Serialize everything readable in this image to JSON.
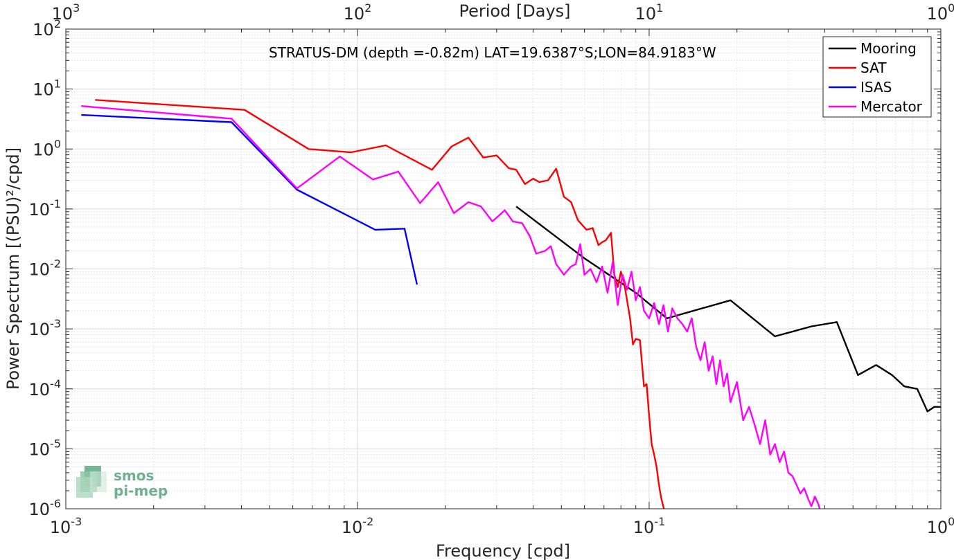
{
  "chart_data": {
    "type": "line",
    "title": "",
    "annotation": "STRATUS-DM (depth =-0.82m) LAT=19.6387°S;LON=84.9183°W",
    "xlabel": "Frequency [cpd]",
    "ylabel": "Power Spectrum [(PSU)²/cpd]",
    "top_xlabel": "Period [Days]",
    "x_scale": "log",
    "y_scale": "log",
    "xlim": [
      0.001,
      1
    ],
    "ylim": [
      1e-06,
      100
    ],
    "grid": true,
    "legend_position": "top-right",
    "x_ticks": [
      {
        "base": "10",
        "exp": "-3"
      },
      {
        "base": "10",
        "exp": "-2"
      },
      {
        "base": "10",
        "exp": "-1"
      },
      {
        "base": "10",
        "exp": "0"
      }
    ],
    "y_ticks": [
      {
        "base": "10",
        "exp": "-6"
      },
      {
        "base": "10",
        "exp": "-5"
      },
      {
        "base": "10",
        "exp": "-4"
      },
      {
        "base": "10",
        "exp": "-3"
      },
      {
        "base": "10",
        "exp": "-2"
      },
      {
        "base": "10",
        "exp": "-1"
      },
      {
        "base": "10",
        "exp": "0"
      },
      {
        "base": "10",
        "exp": "1"
      },
      {
        "base": "10",
        "exp": "2"
      }
    ],
    "top_ticks": [
      {
        "base": "10",
        "exp": "3"
      },
      {
        "base": "10",
        "exp": "2"
      },
      {
        "base": "10",
        "exp": "1"
      },
      {
        "base": "10",
        "exp": "0"
      }
    ],
    "series": [
      {
        "name": "Mooring",
        "color": "#000000",
        "points": [
          [
            0.035,
            0.11
          ],
          [
            0.06,
            0.015
          ],
          [
            0.09,
            0.004
          ],
          [
            0.115,
            0.0015
          ],
          [
            0.19,
            0.003
          ],
          [
            0.27,
            0.00075
          ],
          [
            0.36,
            0.0011
          ],
          [
            0.44,
            0.0013
          ],
          [
            0.52,
            0.00017
          ],
          [
            0.6,
            0.00025
          ],
          [
            0.68,
            0.00017
          ],
          [
            0.75,
            0.00011
          ],
          [
            0.83,
            0.0001
          ],
          [
            0.9,
            4.2e-05
          ],
          [
            0.95,
            5e-05
          ],
          [
            1.0,
            5e-05
          ]
        ]
      },
      {
        "name": "SAT",
        "color": "#ff0000",
        "points": [
          [
            0.00126,
            6.6
          ],
          [
            0.0041,
            4.5
          ],
          [
            0.0068,
            1.0
          ],
          [
            0.0095,
            0.88
          ],
          [
            0.0125,
            1.15
          ],
          [
            0.018,
            0.45
          ],
          [
            0.021,
            1.1
          ],
          [
            0.024,
            1.55
          ],
          [
            0.027,
            0.72
          ],
          [
            0.03,
            0.78
          ],
          [
            0.033,
            0.48
          ],
          [
            0.035,
            0.45
          ],
          [
            0.0375,
            0.26
          ],
          [
            0.04,
            0.32
          ],
          [
            0.042,
            0.28
          ],
          [
            0.045,
            0.3
          ],
          [
            0.048,
            0.47
          ],
          [
            0.051,
            0.16
          ],
          [
            0.054,
            0.13
          ],
          [
            0.057,
            0.065
          ],
          [
            0.061,
            0.045
          ],
          [
            0.064,
            0.048
          ],
          [
            0.067,
            0.025
          ],
          [
            0.069,
            0.028
          ],
          [
            0.071,
            0.03
          ],
          [
            0.074,
            0.04
          ],
          [
            0.076,
            0.008
          ],
          [
            0.078,
            0.005
          ],
          [
            0.08,
            0.009
          ],
          [
            0.082,
            0.006
          ],
          [
            0.084,
            0.003
          ],
          [
            0.086,
            0.0015
          ],
          [
            0.088,
            0.00055
          ],
          [
            0.09,
            0.00068
          ],
          [
            0.093,
            0.00065
          ],
          [
            0.096,
            0.00011
          ],
          [
            0.098,
            0.00012
          ],
          [
            0.1,
            3.5e-05
          ],
          [
            0.102,
            1.2e-05
          ],
          [
            0.104,
            8e-06
          ],
          [
            0.106,
            5e-06
          ],
          [
            0.108,
            2.5e-06
          ],
          [
            0.11,
            1.5e-06
          ],
          [
            0.113,
            9e-07
          ]
        ]
      },
      {
        "name": "ISAS",
        "color": "#0000ff",
        "points": [
          [
            0.00113,
            3.7
          ],
          [
            0.0037,
            2.8
          ],
          [
            0.0062,
            0.21
          ],
          [
            0.0115,
            0.045
          ],
          [
            0.0145,
            0.047
          ],
          [
            0.016,
            0.0055
          ]
        ]
      },
      {
        "name": "Mercator",
        "color": "#ff00ff",
        "points": [
          [
            0.00113,
            5.2
          ],
          [
            0.0037,
            3.2
          ],
          [
            0.0062,
            0.22
          ],
          [
            0.0087,
            0.75
          ],
          [
            0.0113,
            0.31
          ],
          [
            0.0138,
            0.42
          ],
          [
            0.0164,
            0.125
          ],
          [
            0.0189,
            0.28
          ],
          [
            0.0214,
            0.085
          ],
          [
            0.024,
            0.13
          ],
          [
            0.0265,
            0.11
          ],
          [
            0.029,
            0.062
          ],
          [
            0.032,
            0.095
          ],
          [
            0.0341,
            0.062
          ],
          [
            0.0367,
            0.058
          ],
          [
            0.039,
            0.035
          ],
          [
            0.041,
            0.018
          ],
          [
            0.044,
            0.02
          ],
          [
            0.046,
            0.024
          ],
          [
            0.048,
            0.012
          ],
          [
            0.051,
            0.008
          ],
          [
            0.054,
            0.011
          ],
          [
            0.056,
            0.012
          ],
          [
            0.058,
            0.026
          ],
          [
            0.06,
            0.008
          ],
          [
            0.063,
            0.01
          ],
          [
            0.066,
            0.006
          ],
          [
            0.069,
            0.011
          ],
          [
            0.072,
            0.004
          ],
          [
            0.075,
            0.013
          ],
          [
            0.078,
            0.0025
          ],
          [
            0.081,
            0.008
          ],
          [
            0.084,
            0.0045
          ],
          [
            0.087,
            0.009
          ],
          [
            0.09,
            0.003
          ],
          [
            0.093,
            0.005
          ],
          [
            0.096,
            0.002
          ],
          [
            0.1,
            0.0015
          ],
          [
            0.104,
            0.0027
          ],
          [
            0.108,
            0.0012
          ],
          [
            0.112,
            0.0025
          ],
          [
            0.116,
            0.0009
          ],
          [
            0.12,
            0.0022
          ],
          [
            0.125,
            0.0015
          ],
          [
            0.13,
            0.0012
          ],
          [
            0.135,
            0.0009
          ],
          [
            0.14,
            0.0015
          ],
          [
            0.145,
            0.0005
          ],
          [
            0.15,
            0.0003
          ],
          [
            0.155,
            0.0006
          ],
          [
            0.16,
            0.0002
          ],
          [
            0.165,
            0.00035
          ],
          [
            0.17,
            0.00012
          ],
          [
            0.175,
            0.0003
          ],
          [
            0.18,
            0.00011
          ],
          [
            0.185,
            0.00018
          ],
          [
            0.19,
            6e-05
          ],
          [
            0.2,
            0.00013
          ],
          [
            0.21,
            3e-05
          ],
          [
            0.22,
            5e-05
          ],
          [
            0.23,
            2.5e-05
          ],
          [
            0.24,
            1.2e-05
          ],
          [
            0.25,
            3e-05
          ],
          [
            0.26,
            8e-06
          ],
          [
            0.27,
            1.2e-05
          ],
          [
            0.28,
            6e-06
          ],
          [
            0.29,
            9e-06
          ],
          [
            0.3,
            4e-06
          ],
          [
            0.31,
            3.5e-06
          ],
          [
            0.32,
            2.5e-06
          ],
          [
            0.33,
            1.8e-06
          ],
          [
            0.34,
            2.2e-06
          ],
          [
            0.35,
            1.5e-06
          ],
          [
            0.36,
            1.1e-06
          ],
          [
            0.37,
            1.6e-06
          ],
          [
            0.38,
            1.2e-06
          ],
          [
            0.39,
            8e-07
          ]
        ]
      }
    ]
  },
  "logo": {
    "line1": "smos",
    "line2": "pi-mep"
  }
}
